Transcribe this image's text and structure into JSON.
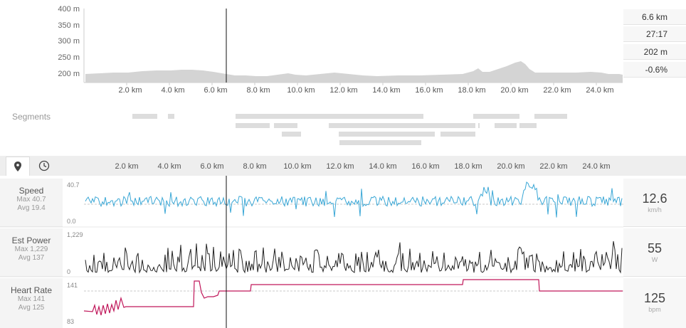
{
  "elevation": {
    "y_ticks": [
      "400 m",
      "350 m",
      "300 m",
      "250 m",
      "200 m"
    ],
    "x_ticks": [
      "2.0 km",
      "4.0 km",
      "6.0 km",
      "8.0 km",
      "10.0 km",
      "12.0 km",
      "14.0 km",
      "16.0 km",
      "18.0 km",
      "20.0 km",
      "22.0 km",
      "24.0 km"
    ]
  },
  "stats": {
    "distance": "6.6 km",
    "time": "27:17",
    "elevation": "202 m",
    "grade": "-0.6%"
  },
  "segments": {
    "label": "Segments"
  },
  "tabs": {
    "map_icon": "map-pin-icon",
    "time_icon": "clock-icon"
  },
  "axis_ticks": [
    "2.0 km",
    "4.0 km",
    "6.0 km",
    "8.0 km",
    "10.0 km",
    "12.0 km",
    "14.0 km",
    "16.0 km",
    "18.0 km",
    "20.0 km",
    "22.0 km",
    "24.0 km"
  ],
  "rows": {
    "speed": {
      "title": "Speed",
      "max": "Max 40.7",
      "avg": "Avg 19.4",
      "ymax": "40.7",
      "ymin": "0.0",
      "value": "12.6",
      "unit": "km/h",
      "color": "#3aa7d6"
    },
    "power": {
      "title": "Est Power",
      "max": "Max 1,229",
      "avg": "Avg 137",
      "ymax": "1,229",
      "ymin": "0",
      "value": "55",
      "unit": "W",
      "color": "#222222"
    },
    "hr": {
      "title": "Heart Rate",
      "max": "Max 141",
      "avg": "Avg 125",
      "ymax": "141",
      "ymin": "83",
      "value": "125",
      "unit": "bpm",
      "color": "#c0175a"
    }
  }
}
